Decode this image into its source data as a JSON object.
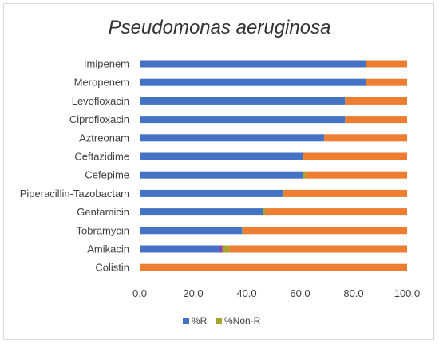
{
  "chart_data": {
    "type": "bar",
    "orientation": "horizontal",
    "stacked": true,
    "title": "Pseudomonas aeruginosa",
    "categories": [
      "Imipenem",
      "Meropenem",
      "Levofloxacin",
      "Ciprofloxacin",
      "Aztreonam",
      "Ceftazidime",
      "Cefepime",
      "Piperacillin-Tazobactam",
      "Gentamicin",
      "Tobramycin",
      "Amikacin",
      "Colistin"
    ],
    "series": [
      {
        "name": "%R",
        "color": "#4472C4",
        "values": [
          84.5,
          84.5,
          76.8,
          76.8,
          69.0,
          61.0,
          61.0,
          53.5,
          46.0,
          38.3,
          30.0,
          0.0
        ]
      },
      {
        "name": "",
        "color": "#8E44AD",
        "values": [
          0.0,
          0.0,
          0.0,
          0.0,
          0.0,
          0.0,
          0.0,
          0.0,
          0.0,
          0.0,
          1.0,
          0.0
        ]
      },
      {
        "name": "%Non-R",
        "color": "#A5A52A",
        "values": [
          0.0,
          0.0,
          0.0,
          0.0,
          0.0,
          0.0,
          1.0,
          0.5,
          1.0,
          0.5,
          2.5,
          0.0
        ]
      },
      {
        "name": "",
        "color": "#ED7D31",
        "values": [
          15.5,
          15.5,
          23.2,
          23.2,
          31.0,
          39.0,
          38.0,
          46.0,
          53.0,
          61.2,
          66.5,
          100.0
        ]
      }
    ],
    "xlim": [
      0,
      100
    ],
    "xticks": [
      "0.0",
      "20.0",
      "40.0",
      "60.0",
      "80.0",
      "100.0"
    ],
    "legend_position": "bottom",
    "grid": false
  }
}
